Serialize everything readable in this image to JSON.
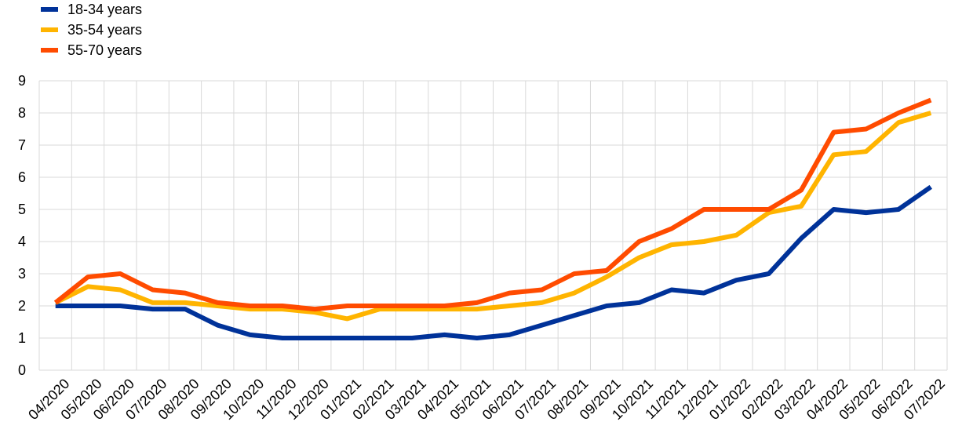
{
  "chart_data": {
    "type": "line",
    "title": "",
    "xlabel": "",
    "ylabel": "",
    "ylim": [
      0,
      9
    ],
    "yticks": [
      "0",
      "1",
      "2",
      "3",
      "4",
      "5",
      "6",
      "7",
      "8",
      "9"
    ],
    "grid": true,
    "legend_position": "top-left",
    "categories": [
      "04/2020",
      "05/2020",
      "06/2020",
      "07/2020",
      "08/2020",
      "09/2020",
      "10/2020",
      "11/2020",
      "12/2020",
      "01/2021",
      "02/2021",
      "03/2021",
      "04/2021",
      "05/2021",
      "06/2021",
      "07/2021",
      "08/2021",
      "09/2021",
      "10/2021",
      "11/2021",
      "12/2021",
      "01/2022",
      "02/2022",
      "03/2022",
      "04/2022",
      "05/2022",
      "06/2022",
      "07/2022"
    ],
    "series": [
      {
        "name": "18-34 years",
        "color": "#003299",
        "values": [
          2.0,
          2.0,
          2.0,
          1.9,
          1.9,
          1.4,
          1.1,
          1.0,
          1.0,
          1.0,
          1.0,
          1.0,
          1.1,
          1.0,
          1.1,
          1.4,
          1.7,
          2.0,
          2.1,
          2.5,
          2.4,
          2.8,
          3.0,
          4.1,
          5.0,
          4.9,
          5.0,
          5.7
        ]
      },
      {
        "name": "35-54 years",
        "color": "#FFB400",
        "values": [
          2.1,
          2.6,
          2.5,
          2.1,
          2.1,
          2.0,
          1.9,
          1.9,
          1.8,
          1.6,
          1.9,
          1.9,
          1.9,
          1.9,
          2.0,
          2.1,
          2.4,
          2.9,
          3.5,
          3.9,
          4.0,
          4.2,
          4.9,
          5.1,
          6.7,
          6.8,
          7.7,
          8.0
        ]
      },
      {
        "name": "55-70 years",
        "color": "#FF4B00",
        "values": [
          2.1,
          2.9,
          3.0,
          2.5,
          2.4,
          2.1,
          2.0,
          2.0,
          1.9,
          2.0,
          2.0,
          2.0,
          2.0,
          2.1,
          2.4,
          2.5,
          3.0,
          3.1,
          4.0,
          4.4,
          5.0,
          5.0,
          5.0,
          5.6,
          7.4,
          7.5,
          8.0,
          8.4
        ]
      }
    ]
  }
}
